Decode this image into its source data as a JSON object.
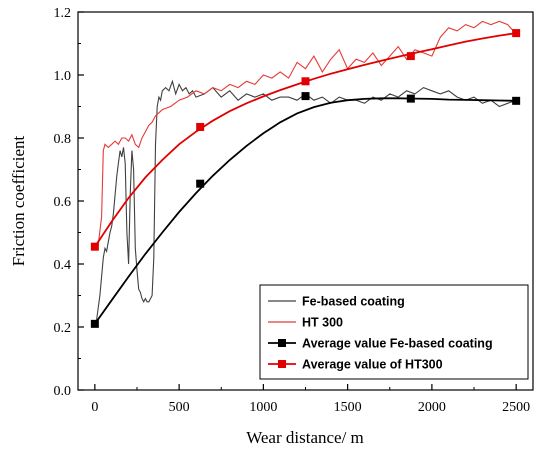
{
  "chart_data": {
    "type": "line",
    "xlabel": "Wear distance/ m",
    "ylabel": "Friction coefficient",
    "xlim": [
      -100,
      2600
    ],
    "ylim": [
      0.0,
      1.2
    ],
    "x_ticks": [
      "0",
      "500",
      "1000",
      "1500",
      "2000",
      "2500"
    ],
    "y_ticks": [
      "0.0",
      "0.2",
      "0.4",
      "0.6",
      "0.8",
      "1.0",
      "1.2"
    ],
    "grid": false,
    "legend_position": "bottom-right",
    "series": [
      {
        "name": "Fe-based coating",
        "kind": "raw",
        "color": "#404040",
        "x": [
          0,
          10,
          20,
          30,
          40,
          50,
          60,
          70,
          80,
          90,
          100,
          110,
          120,
          130,
          140,
          150,
          160,
          170,
          180,
          190,
          200,
          210,
          220,
          230,
          240,
          250,
          260,
          270,
          280,
          290,
          300,
          310,
          320,
          330,
          340,
          350,
          360,
          370,
          380,
          390,
          400,
          420,
          440,
          460,
          480,
          500,
          520,
          540,
          560,
          580,
          600,
          650,
          700,
          750,
          800,
          850,
          900,
          950,
          1000,
          1050,
          1100,
          1150,
          1200,
          1250,
          1300,
          1350,
          1400,
          1450,
          1500,
          1550,
          1600,
          1650,
          1700,
          1750,
          1800,
          1850,
          1900,
          1950,
          2000,
          2050,
          2100,
          2150,
          2200,
          2250,
          2300,
          2350,
          2400,
          2450,
          2500
        ],
        "values": [
          0.2,
          0.22,
          0.26,
          0.3,
          0.36,
          0.42,
          0.45,
          0.44,
          0.47,
          0.5,
          0.52,
          0.56,
          0.62,
          0.68,
          0.72,
          0.76,
          0.74,
          0.77,
          0.72,
          0.5,
          0.4,
          0.62,
          0.76,
          0.7,
          0.45,
          0.38,
          0.32,
          0.31,
          0.29,
          0.28,
          0.29,
          0.28,
          0.28,
          0.29,
          0.3,
          0.42,
          0.78,
          0.9,
          0.93,
          0.92,
          0.95,
          0.96,
          0.95,
          0.98,
          0.94,
          0.97,
          0.95,
          0.96,
          0.94,
          0.95,
          0.93,
          0.94,
          0.96,
          0.93,
          0.95,
          0.92,
          0.94,
          0.93,
          0.94,
          0.92,
          0.93,
          0.93,
          0.92,
          0.94,
          0.92,
          0.93,
          0.91,
          0.93,
          0.92,
          0.92,
          0.91,
          0.93,
          0.92,
          0.94,
          0.93,
          0.95,
          0.94,
          0.96,
          0.95,
          0.94,
          0.95,
          0.93,
          0.92,
          0.93,
          0.91,
          0.92,
          0.9,
          0.91,
          0.92
        ]
      },
      {
        "name": "HT 300",
        "kind": "raw",
        "color": "#e53a3a",
        "x": [
          0,
          20,
          40,
          50,
          60,
          80,
          100,
          120,
          140,
          160,
          180,
          200,
          220,
          240,
          260,
          280,
          300,
          320,
          340,
          360,
          380,
          400,
          450,
          500,
          550,
          600,
          650,
          700,
          750,
          800,
          850,
          900,
          950,
          1000,
          1050,
          1100,
          1150,
          1200,
          1250,
          1300,
          1350,
          1400,
          1450,
          1500,
          1550,
          1600,
          1650,
          1700,
          1750,
          1800,
          1850,
          1900,
          1950,
          2000,
          2050,
          2100,
          2150,
          2200,
          2250,
          2300,
          2350,
          2400,
          2450,
          2500
        ],
        "values": [
          0.45,
          0.46,
          0.55,
          0.76,
          0.78,
          0.77,
          0.78,
          0.79,
          0.78,
          0.8,
          0.8,
          0.79,
          0.81,
          0.78,
          0.77,
          0.8,
          0.82,
          0.84,
          0.85,
          0.87,
          0.88,
          0.89,
          0.9,
          0.92,
          0.93,
          0.95,
          0.94,
          0.96,
          0.95,
          0.97,
          0.96,
          0.98,
          0.97,
          1.0,
          0.99,
          1.01,
          0.99,
          1.04,
          1.02,
          1.06,
          1.01,
          1.05,
          1.08,
          1.02,
          1.05,
          1.04,
          1.07,
          1.03,
          1.06,
          1.09,
          1.05,
          1.08,
          1.07,
          1.06,
          1.12,
          1.15,
          1.14,
          1.16,
          1.15,
          1.17,
          1.16,
          1.17,
          1.16,
          1.13
        ]
      },
      {
        "name": "Average value Fe-based  coating",
        "kind": "average",
        "color": "#000000",
        "x": [
          0,
          625,
          1250,
          1875,
          2500
        ],
        "values": [
          0.21,
          0.655,
          0.933,
          0.925,
          0.918
        ],
        "fit": {
          "x": [
            0,
            100,
            200,
            300,
            400,
            500,
            600,
            700,
            800,
            900,
            1000,
            1100,
            1200,
            1300,
            1400,
            1500,
            1600,
            1700,
            1800,
            1900,
            2000,
            2100,
            2200,
            2300,
            2400,
            2500
          ],
          "values": [
            0.21,
            0.285,
            0.36,
            0.432,
            0.5,
            0.565,
            0.625,
            0.68,
            0.73,
            0.775,
            0.815,
            0.85,
            0.878,
            0.898,
            0.912,
            0.92,
            0.924,
            0.926,
            0.926,
            0.925,
            0.924,
            0.922,
            0.921,
            0.92,
            0.919,
            0.918
          ]
        }
      },
      {
        "name": "Average value of HT300",
        "kind": "average",
        "color": "#e00000",
        "x": [
          0,
          625,
          1250,
          1875,
          2500
        ],
        "values": [
          0.455,
          0.835,
          0.98,
          1.06,
          1.133
        ],
        "fit": {
          "x": [
            0,
            100,
            200,
            300,
            400,
            500,
            600,
            700,
            800,
            900,
            1000,
            1100,
            1200,
            1300,
            1400,
            1500,
            1600,
            1700,
            1800,
            1900,
            2000,
            2100,
            2200,
            2300,
            2400,
            2500
          ],
          "values": [
            0.455,
            0.535,
            0.61,
            0.675,
            0.73,
            0.78,
            0.82,
            0.855,
            0.885,
            0.91,
            0.932,
            0.952,
            0.97,
            0.988,
            1.004,
            1.018,
            1.032,
            1.045,
            1.058,
            1.07,
            1.082,
            1.094,
            1.106,
            1.116,
            1.125,
            1.133
          ]
        }
      }
    ]
  }
}
